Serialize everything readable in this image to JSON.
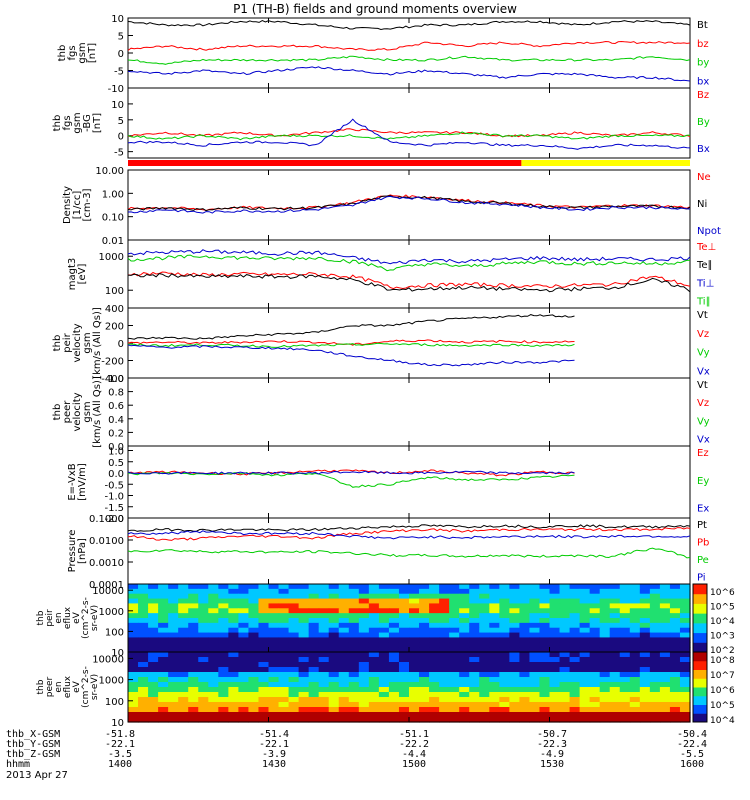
{
  "chart_data": {
    "type": "line",
    "title": "P1 (TH-B) fields and ground moments overview",
    "date": "2013 Apr 27",
    "time_axis": {
      "label": "hhmm",
      "ticks": [
        "1400",
        "1430",
        "1500",
        "1530",
        "1600"
      ]
    },
    "panels": [
      {
        "name": "fgs-gsm",
        "ylabel": [
          "thb",
          "fgs",
          "gsm",
          "[nT]"
        ],
        "ylim": [
          -10,
          10
        ],
        "yticks": [
          "10",
          "5",
          "0",
          "-5",
          "-10"
        ],
        "series": [
          {
            "name": "Bt",
            "color": "#000000",
            "values": [
              9,
              8,
              8,
              9,
              9,
              8,
              7,
              7,
              8,
              8,
              9,
              9,
              8,
              9,
              9,
              8
            ]
          },
          {
            "name": "bz",
            "color": "#ff0000",
            "values": [
              1,
              2,
              1,
              2,
              2,
              2,
              1,
              1,
              3,
              2,
              3,
              2,
              3,
              3,
              3,
              3
            ]
          },
          {
            "name": "by",
            "color": "#00cc00",
            "values": [
              -2,
              -3,
              -2,
              -2,
              -2,
              -2,
              -1,
              -2,
              -2,
              -1,
              -2,
              -2,
              -2,
              -2,
              -1,
              -2
            ]
          },
          {
            "name": "bx",
            "color": "#0000cc",
            "values": [
              -5,
              -6,
              -5,
              -6,
              -5,
              -4,
              -5,
              -6,
              -5,
              -6,
              -7,
              -6,
              -6,
              -7,
              -7,
              -8
            ]
          }
        ]
      },
      {
        "name": "fgs-dsl",
        "ylabel": [
          "thb",
          "fgs",
          "gsm",
          "-BG",
          "[nT]"
        ],
        "ylim": [
          -7,
          15
        ],
        "yticks": [
          "10",
          "5",
          "0",
          "-5"
        ],
        "series": [
          {
            "name": "Bz",
            "color": "#ff0000",
            "values": [
              0,
              1,
              0,
              1,
              0,
              1,
              2,
              1,
              1,
              1,
              0,
              0,
              1,
              0,
              1,
              0
            ]
          },
          {
            "name": "By",
            "color": "#00cc00",
            "values": [
              0,
              -1,
              0,
              -1,
              0,
              0,
              0,
              -1,
              0,
              1,
              0,
              0,
              -1,
              0,
              0,
              0
            ]
          },
          {
            "name": "Bx",
            "color": "#0000cc",
            "values": [
              -2,
              -2,
              -3,
              -2,
              -2,
              -3,
              5,
              -2,
              -3,
              -2,
              -3,
              -3,
              -4,
              -3,
              -3,
              -4
            ]
          }
        ]
      },
      {
        "name": "density",
        "ylabel": [
          "Density",
          "[1/cc]",
          "[cm-3]"
        ],
        "log": true,
        "ylim": [
          0.01,
          10
        ],
        "yticks": [
          "10.00",
          "1.00",
          "0.10",
          "0.01"
        ],
        "series": [
          {
            "name": "Ne",
            "color": "#ff0000",
            "values": [
              0.22,
              0.25,
              0.2,
              0.25,
              0.23,
              0.25,
              0.4,
              0.8,
              0.7,
              0.5,
              0.4,
              0.3,
              0.25,
              0.3,
              0.3,
              0.25
            ]
          },
          {
            "name": "Ni",
            "color": "#000000",
            "values": [
              0.2,
              0.24,
              0.2,
              0.24,
              0.22,
              0.24,
              0.35,
              0.75,
              0.65,
              0.45,
              0.38,
              0.28,
              0.24,
              0.28,
              0.28,
              0.24
            ]
          },
          {
            "name": "Npot",
            "color": "#0000cc",
            "values": [
              0.15,
              0.2,
              0.15,
              0.18,
              0.17,
              0.2,
              0.3,
              0.7,
              0.6,
              0.4,
              0.35,
              0.25,
              0.2,
              0.25,
              0.25,
              0.2
            ]
          }
        ]
      },
      {
        "name": "temperature",
        "ylabel": [
          "magt3",
          "[eV]"
        ],
        "log": true,
        "ylim": [
          30,
          3000
        ],
        "yticks": [
          "1000",
          "100"
        ],
        "series": [
          {
            "name": "Te⊥",
            "color": "#ff0000",
            "values": [
              300,
              320,
              280,
              300,
              290,
              300,
              250,
              120,
              140,
              150,
              140,
              130,
              140,
              150,
              250,
              130
            ]
          },
          {
            "name": "Te∥",
            "color": "#000000",
            "values": [
              260,
              280,
              250,
              260,
              250,
              260,
              200,
              100,
              110,
              120,
              110,
              100,
              110,
              120,
              200,
              100
            ]
          },
          {
            "name": "Ti⊥",
            "color": "#0000cc",
            "values": [
              1200,
              1300,
              1400,
              1300,
              1200,
              1300,
              900,
              600,
              800,
              700,
              800,
              900,
              800,
              850,
              800,
              900
            ]
          },
          {
            "name": "Ti∥",
            "color": "#00cc00",
            "values": [
              800,
              900,
              1000,
              900,
              850,
              900,
              700,
              400,
              600,
              500,
              600,
              700,
              600,
              650,
              600,
              700
            ]
          }
        ]
      },
      {
        "name": "peir-velocity",
        "ylabel": [
          "thb",
          "peir",
          "velocity",
          "gsm",
          "[km/s (All Qs)]"
        ],
        "ylim": [
          -400,
          400
        ],
        "yticks": [
          "400",
          "200",
          "0",
          "-200",
          "-400"
        ],
        "series": [
          {
            "name": "Vt",
            "color": "#000000",
            "values": [
              50,
              60,
              50,
              80,
              100,
              120,
              200,
              200,
              250,
              280,
              300,
              320,
              300,
              null,
              null,
              null
            ]
          },
          {
            "name": "Vz",
            "color": "#ff0000",
            "values": [
              0,
              10,
              0,
              10,
              20,
              10,
              -20,
              20,
              30,
              10,
              20,
              10,
              20,
              null,
              null,
              null
            ]
          },
          {
            "name": "Vy",
            "color": "#00cc00",
            "values": [
              -20,
              -30,
              -20,
              -30,
              -40,
              -30,
              -20,
              -10,
              -20,
              -30,
              -20,
              -30,
              -20,
              null,
              null,
              null
            ]
          },
          {
            "name": "Vx",
            "color": "#0000cc",
            "values": [
              -30,
              -50,
              -40,
              -50,
              -60,
              -80,
              -150,
              -200,
              -250,
              -250,
              -220,
              -220,
              -200,
              null,
              null,
              null
            ]
          }
        ]
      },
      {
        "name": "peer-velocity",
        "ylabel": [
          "thb",
          "peer",
          "velocity",
          "gsm",
          "[km/s (All Qs)]"
        ],
        "ylim": [
          0,
          1
        ],
        "yticks": [
          "1.0",
          "0.8",
          "0.6",
          "0.4",
          "0.2",
          "0.0"
        ],
        "series": [
          {
            "name": "Vt",
            "color": "#000000",
            "values": []
          },
          {
            "name": "Vz",
            "color": "#ff0000",
            "values": []
          },
          {
            "name": "Vy",
            "color": "#00cc00",
            "values": []
          },
          {
            "name": "Vx",
            "color": "#0000cc",
            "values": []
          }
        ]
      },
      {
        "name": "efield",
        "ylabel": [
          "E=-VxB",
          "[mV/m]"
        ],
        "ylim": [
          -2,
          1.2
        ],
        "yticks": [
          "1.0",
          "0.5",
          "0.0",
          "-0.5",
          "-1.0",
          "-1.5",
          "-2.0"
        ],
        "series": [
          {
            "name": "Ez",
            "color": "#ff0000",
            "values": [
              0,
              0.05,
              0,
              -0.05,
              0,
              0.1,
              0.1,
              0,
              0.1,
              0,
              -0.1,
              0.05,
              0,
              null,
              null,
              null
            ]
          },
          {
            "name": "Ey",
            "color": "#00cc00",
            "values": [
              -0.05,
              0,
              -0.05,
              0,
              -0.1,
              0,
              -0.6,
              -0.5,
              -0.2,
              -0.3,
              -0.3,
              -0.2,
              -0.1,
              null,
              null,
              null
            ]
          },
          {
            "name": "Ex",
            "color": "#0000cc",
            "values": [
              0,
              0,
              0,
              0,
              0,
              0,
              0.05,
              0,
              0,
              0.05,
              0,
              0,
              0,
              null,
              null,
              null
            ]
          }
        ]
      },
      {
        "name": "pressure",
        "ylabel": [
          "Pressure",
          "[nPa]"
        ],
        "log": true,
        "ylim": [
          0.0001,
          0.1
        ],
        "yticks": [
          "0.1000",
          "0.0100",
          "0.0010",
          "0.0001"
        ],
        "series": [
          {
            "name": "Pt",
            "color": "#000000",
            "values": [
              0.025,
              0.03,
              0.028,
              0.03,
              0.028,
              0.03,
              0.035,
              0.04,
              0.045,
              0.04,
              0.045,
              0.04,
              0.045,
              0.04,
              0.04,
              0.045
            ]
          },
          {
            "name": "Pb",
            "color": "#ff0000",
            "values": [
              0.015,
              0.01,
              0.012,
              0.015,
              0.015,
              0.012,
              0.02,
              0.025,
              0.03,
              0.025,
              0.03,
              0.03,
              0.03,
              0.03,
              0.03,
              0.035
            ]
          },
          {
            "name": "Pe",
            "color": "#00cc00",
            "values": [
              0.003,
              0.0035,
              0.003,
              0.003,
              0.0028,
              0.003,
              0.0025,
              0.002,
              0.002,
              0.0018,
              0.002,
              0.0018,
              0.002,
              0.0018,
              0.004,
              0.0015
            ]
          },
          {
            "name": "Pi",
            "color": "#0000cc",
            "values": [
              0.02,
              0.02,
              0.025,
              0.02,
              0.02,
              0.02,
              0.015,
              0.012,
              0.014,
              0.013,
              0.014,
              0.015,
              0.014,
              0.015,
              0.015,
              0.014
            ]
          }
        ]
      }
    ],
    "spectrograms": [
      {
        "name": "peir-en-eflux",
        "type": "heatmap",
        "ylabel": [
          "thb",
          "peir",
          "en",
          "eflux",
          "eV",
          "(cm^2-s-",
          "sr-eV)"
        ],
        "ylim": [
          10,
          20000
        ],
        "yticks": [
          "10000",
          "1000",
          "100",
          "10"
        ],
        "colorbar_ticks": [
          "10^6",
          "10^5",
          "10^4",
          "10^3",
          "10^2"
        ]
      },
      {
        "name": "peer-en-eflux",
        "type": "heatmap",
        "ylabel": [
          "thb",
          "peer",
          "en",
          "eflux",
          "eV",
          "(cm^2-s-",
          "sr-eV)"
        ],
        "ylim": [
          10,
          20000
        ],
        "yticks": [
          "10000",
          "1000",
          "100",
          "10"
        ],
        "colorbar_ticks": [
          "10^8",
          "10^7",
          "10^6",
          "10^5",
          "10^4"
        ]
      }
    ],
    "mode_bar": {
      "segments": [
        {
          "color": "#ff0000",
          "fraction": 0.7
        },
        {
          "color": "#ffff00",
          "fraction": 0.3
        }
      ]
    }
  },
  "footer": {
    "rows": [
      {
        "label": "thb_X-GSM",
        "values": [
          "-51.8",
          "-51.4",
          "-51.1",
          "-50.7",
          "-50.4"
        ]
      },
      {
        "label": "thb_Y-GSM",
        "values": [
          "-22.1",
          "-22.1",
          "-22.2",
          "-22.3",
          "-22.4"
        ]
      },
      {
        "label": "thb_Z-GSM",
        "values": [
          "-3.5",
          "-3.9",
          "-4.4",
          "-4.9",
          "-5.5"
        ]
      },
      {
        "label": "hhmm",
        "values": [
          "1400",
          "1430",
          "1500",
          "1530",
          "1600"
        ]
      }
    ]
  }
}
